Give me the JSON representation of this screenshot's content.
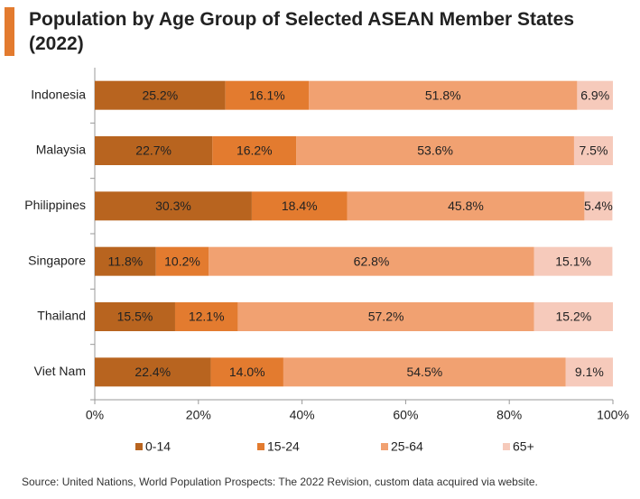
{
  "chart_data": {
    "type": "stacked-bar-horizontal",
    "title": "Population by Age Group of Selected ASEAN Member States (2022)",
    "categories": [
      "Indonesia",
      "Malaysia",
      "Philippines",
      "Singapore",
      "Thailand",
      "Viet Nam"
    ],
    "series": [
      {
        "name": "0-14",
        "color": "#b8641f",
        "values": [
          25.2,
          22.7,
          30.3,
          11.8,
          15.5,
          22.4
        ],
        "value_labels": [
          "25.2%",
          "22.7%",
          "30.3%",
          "11.8%",
          "15.5%",
          "22.4%"
        ]
      },
      {
        "name": "15-24",
        "color": "#e37b2f",
        "values": [
          16.1,
          16.2,
          18.4,
          10.2,
          12.1,
          14.0
        ],
        "value_labels": [
          "16.1%",
          "16.2%",
          "18.4%",
          "10.2%",
          "12.1%",
          "14.0%"
        ]
      },
      {
        "name": "25-64",
        "color": "#f1a171",
        "values": [
          51.8,
          53.6,
          45.8,
          62.8,
          57.2,
          54.5
        ],
        "value_labels": [
          "51.8%",
          "53.6%",
          "45.8%",
          "62.8%",
          "57.2%",
          "54.5%"
        ]
      },
      {
        "name": "65+",
        "color": "#f6cabb",
        "values": [
          6.9,
          7.5,
          5.4,
          15.1,
          15.2,
          9.1
        ],
        "value_labels": [
          "6.9%",
          "7.5%",
          "5.4%",
          "15.1%",
          "15.2%",
          "9.1%"
        ]
      }
    ],
    "xlim": [
      0,
      100
    ],
    "xticks": [
      {
        "value": 0,
        "label": "0%"
      },
      {
        "value": 20,
        "label": "20%"
      },
      {
        "value": 40,
        "label": "40%"
      },
      {
        "value": 60,
        "label": "60%"
      },
      {
        "value": 80,
        "label": "80%"
      },
      {
        "value": 100,
        "label": "100%"
      }
    ],
    "legend": "bottom",
    "source": "Source: United Nations, World Population Prospects: The 2022 Revision, custom data acquired via website."
  }
}
